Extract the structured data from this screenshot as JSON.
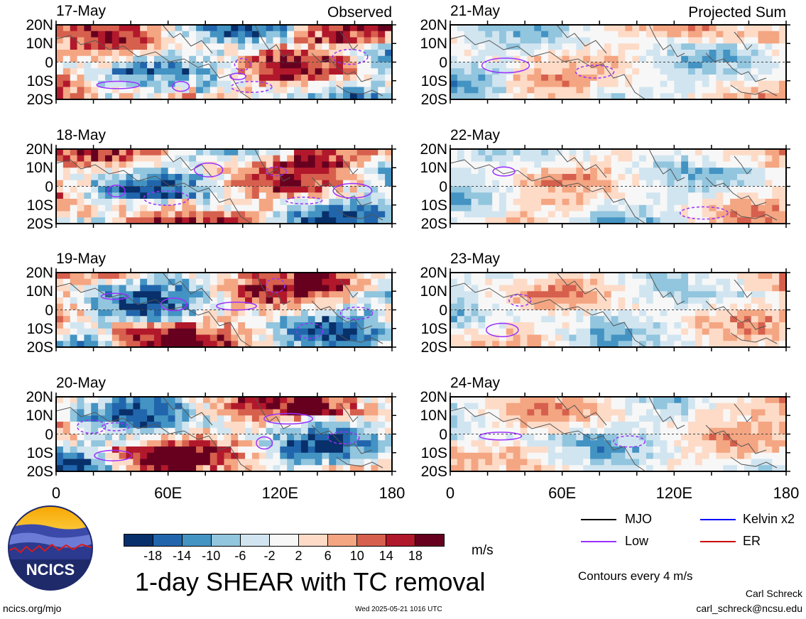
{
  "title": "1-day SHEAR with TC removal",
  "column_labels": {
    "left": "Observed",
    "right": "Projected Sum"
  },
  "panels_left": [
    {
      "date": "17-May"
    },
    {
      "date": "18-May"
    },
    {
      "date": "19-May"
    },
    {
      "date": "20-May"
    }
  ],
  "panels_right": [
    {
      "date": "21-May"
    },
    {
      "date": "22-May"
    },
    {
      "date": "23-May"
    },
    {
      "date": "24-May"
    }
  ],
  "y_tick_labels": [
    "20N",
    "10N",
    "0",
    "10S",
    "20S"
  ],
  "x_tick_labels": [
    "0",
    "60E",
    "120E",
    "180"
  ],
  "colorbar": {
    "unit": "m/s",
    "tick_labels": [
      "-18",
      "-14",
      "-10",
      "-6",
      "-2",
      "2",
      "6",
      "10",
      "14",
      "18"
    ],
    "colors": [
      "#08306b",
      "#2166ac",
      "#4393c3",
      "#92c5de",
      "#d1e5f0",
      "#f7f7f7",
      "#fddbc7",
      "#f4a582",
      "#d6604d",
      "#b2182b",
      "#67001f"
    ]
  },
  "legend": {
    "items": [
      {
        "label": "MJO",
        "color": "#000000"
      },
      {
        "label": "Kelvin x2",
        "color": "#0000ff"
      },
      {
        "label": "Low",
        "color": "#9b30ff"
      },
      {
        "label": "ER",
        "color": "#cc0000"
      }
    ],
    "note": "Contours every 4 m/s"
  },
  "logo": {
    "text": "NCICS"
  },
  "footer": {
    "url": "ncics.org/mjo",
    "timestamp": "Wed 2025-05-21 1016 UTC",
    "author": "Carl Schreck",
    "email": "carl_schreck@ncsu.edu"
  },
  "chart_data": [
    {
      "type": "heatmap",
      "title": "17-May",
      "xlim": [
        0,
        180
      ],
      "ylim": [
        -20,
        20
      ]
    },
    {
      "type": "heatmap",
      "title": "18-May",
      "xlim": [
        0,
        180
      ],
      "ylim": [
        -20,
        20
      ]
    },
    {
      "type": "heatmap",
      "title": "19-May",
      "xlim": [
        0,
        180
      ],
      "ylim": [
        -20,
        20
      ]
    },
    {
      "type": "heatmap",
      "title": "20-May",
      "xlim": [
        0,
        180
      ],
      "ylim": [
        -20,
        20
      ]
    },
    {
      "type": "heatmap",
      "title": "21-May",
      "xlim": [
        0,
        180
      ],
      "ylim": [
        -20,
        20
      ]
    },
    {
      "type": "heatmap",
      "title": "22-May",
      "xlim": [
        0,
        180
      ],
      "ylim": [
        -20,
        20
      ]
    },
    {
      "type": "heatmap",
      "title": "23-May",
      "xlim": [
        0,
        180
      ],
      "ylim": [
        -20,
        20
      ]
    },
    {
      "type": "heatmap",
      "title": "24-May",
      "xlim": [
        0,
        180
      ],
      "ylim": [
        -20,
        20
      ]
    }
  ]
}
